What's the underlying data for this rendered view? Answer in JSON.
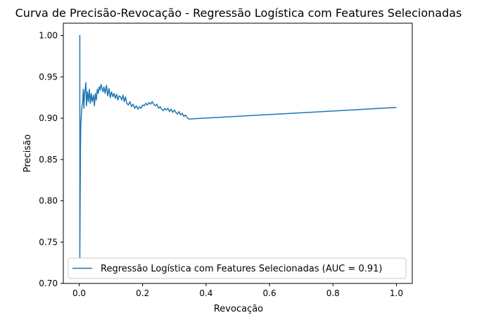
{
  "chart_data": {
    "type": "line",
    "title": "Curva de Precisão-Revocação - Regressão Logística com Features Selecionadas",
    "xlabel": "Revocação",
    "ylabel": "Precisão",
    "xlim": [
      -0.05,
      1.05
    ],
    "ylim": [
      0.7,
      1.015
    ],
    "xticks": [
      0.0,
      0.2,
      0.4,
      0.6,
      0.8,
      1.0
    ],
    "xtick_labels": [
      "0.0",
      "0.2",
      "0.4",
      "0.6",
      "0.8",
      "1.0"
    ],
    "yticks": [
      0.7,
      0.75,
      0.8,
      0.85,
      0.9,
      0.95,
      1.0
    ],
    "ytick_labels": [
      "0.70",
      "0.75",
      "0.80",
      "0.85",
      "0.90",
      "0.95",
      "1.00"
    ],
    "grid": false,
    "legend_position": "lower-right",
    "series": [
      {
        "name": "Regressão Logística com Features Selecionadas (AUC = 0.91)",
        "color": "#1f77b4",
        "x": [
          0.0,
          0.002,
          0.002,
          0.003,
          0.004,
          0.005,
          0.007,
          0.009,
          0.011,
          0.013,
          0.015,
          0.017,
          0.019,
          0.021,
          0.023,
          0.026,
          0.029,
          0.032,
          0.035,
          0.038,
          0.041,
          0.045,
          0.048,
          0.051,
          0.054,
          0.057,
          0.06,
          0.063,
          0.066,
          0.069,
          0.072,
          0.075,
          0.078,
          0.082,
          0.086,
          0.09,
          0.094,
          0.098,
          0.102,
          0.106,
          0.11,
          0.114,
          0.118,
          0.122,
          0.126,
          0.13,
          0.134,
          0.138,
          0.142,
          0.146,
          0.15,
          0.155,
          0.16,
          0.165,
          0.17,
          0.175,
          0.18,
          0.185,
          0.19,
          0.195,
          0.2,
          0.205,
          0.21,
          0.215,
          0.22,
          0.225,
          0.23,
          0.235,
          0.24,
          0.245,
          0.25,
          0.255,
          0.26,
          0.265,
          0.27,
          0.275,
          0.28,
          0.285,
          0.29,
          0.295,
          0.3,
          0.305,
          0.31,
          0.315,
          0.32,
          0.325,
          0.33,
          0.335,
          0.34,
          0.345,
          1.0
        ],
        "y": [
          1.0,
          1.0,
          0.73,
          0.8,
          0.86,
          0.89,
          0.905,
          0.915,
          0.92,
          0.935,
          0.912,
          0.93,
          0.935,
          0.943,
          0.915,
          0.932,
          0.92,
          0.935,
          0.918,
          0.93,
          0.92,
          0.928,
          0.915,
          0.93,
          0.922,
          0.935,
          0.93,
          0.938,
          0.934,
          0.941,
          0.936,
          0.932,
          0.938,
          0.93,
          0.94,
          0.927,
          0.936,
          0.925,
          0.932,
          0.926,
          0.93,
          0.924,
          0.929,
          0.922,
          0.927,
          0.926,
          0.922,
          0.928,
          0.92,
          0.926,
          0.918,
          0.916,
          0.92,
          0.914,
          0.917,
          0.912,
          0.915,
          0.911,
          0.914,
          0.912,
          0.916,
          0.915,
          0.918,
          0.916,
          0.919,
          0.917,
          0.92,
          0.917,
          0.915,
          0.917,
          0.912,
          0.914,
          0.911,
          0.909,
          0.912,
          0.91,
          0.912,
          0.908,
          0.911,
          0.907,
          0.91,
          0.907,
          0.905,
          0.908,
          0.904,
          0.906,
          0.902,
          0.904,
          0.901,
          0.899,
          0.913
        ]
      }
    ]
  }
}
